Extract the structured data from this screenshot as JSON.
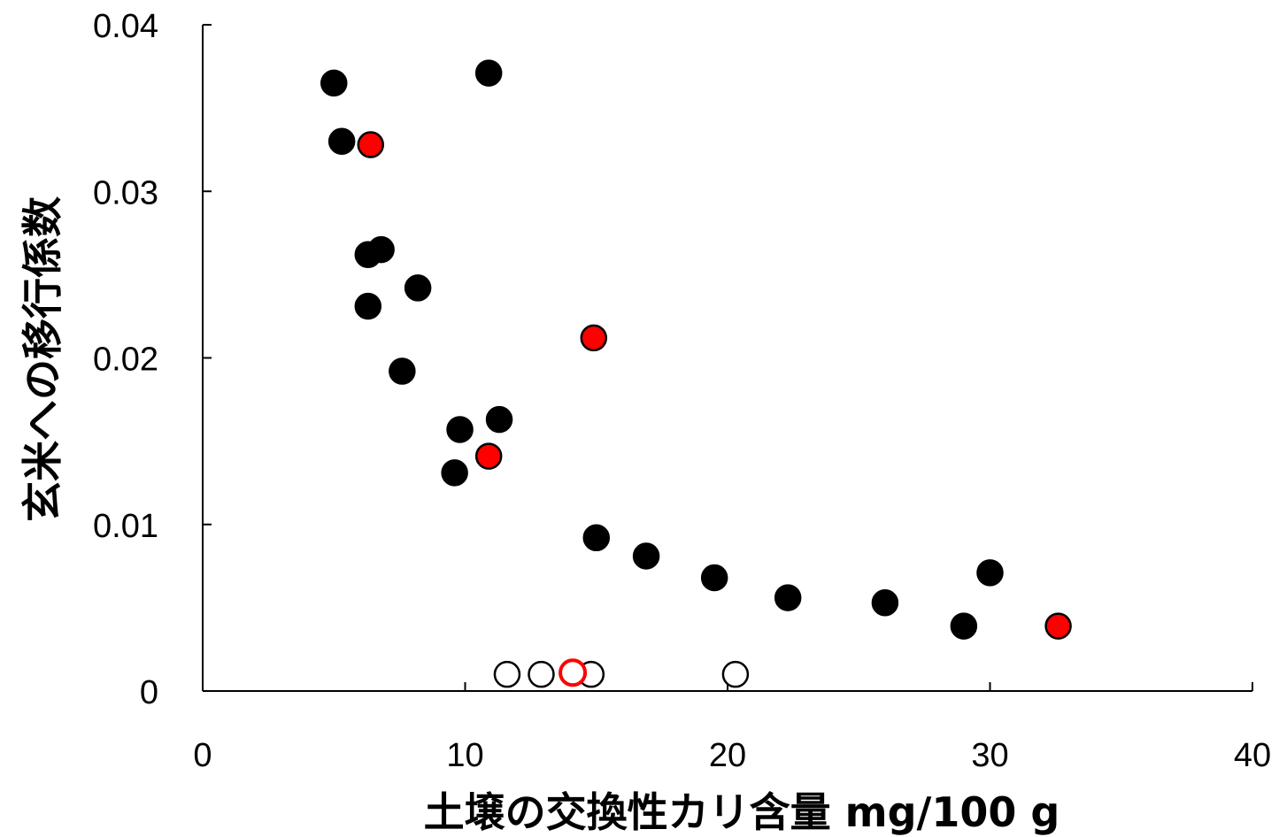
{
  "chart_data": {
    "type": "scatter",
    "title": "",
    "xlabel": "土壌の交換性カリ含量 mg/100 g",
    "ylabel": "玄米への移行係数",
    "xlim": [
      0,
      40
    ],
    "ylim": [
      0,
      0.04
    ],
    "xticks": [
      "0",
      "10",
      "20",
      "30",
      "40"
    ],
    "yticks": [
      "0",
      "0.01",
      "0.02",
      "0.03",
      "0.04"
    ],
    "grid": false,
    "legend": "none",
    "series": [
      {
        "marker": "filled-circle",
        "color": "#000000",
        "points": [
          {
            "x": 5.0,
            "y": 0.0365
          },
          {
            "x": 10.9,
            "y": 0.0371
          },
          {
            "x": 5.3,
            "y": 0.033
          },
          {
            "x": 6.3,
            "y": 0.0262
          },
          {
            "x": 6.8,
            "y": 0.0265
          },
          {
            "x": 6.3,
            "y": 0.0231
          },
          {
            "x": 8.2,
            "y": 0.0242
          },
          {
            "x": 7.6,
            "y": 0.0192
          },
          {
            "x": 9.8,
            "y": 0.0157
          },
          {
            "x": 11.3,
            "y": 0.0163
          },
          {
            "x": 9.6,
            "y": 0.0131
          },
          {
            "x": 15.0,
            "y": 0.0092
          },
          {
            "x": 16.9,
            "y": 0.0081
          },
          {
            "x": 19.5,
            "y": 0.0068
          },
          {
            "x": 22.3,
            "y": 0.0056
          },
          {
            "x": 26.0,
            "y": 0.0053
          },
          {
            "x": 29.0,
            "y": 0.0039
          },
          {
            "x": 30.0,
            "y": 0.0071
          }
        ]
      },
      {
        "marker": "filled-circle",
        "color": "#ff0000",
        "edge": "#000000",
        "points": [
          {
            "x": 6.4,
            "y": 0.0328
          },
          {
            "x": 14.9,
            "y": 0.0212
          },
          {
            "x": 10.9,
            "y": 0.0141
          },
          {
            "x": 32.6,
            "y": 0.0039
          }
        ]
      },
      {
        "marker": "open-circle",
        "color": "#000000",
        "points": [
          {
            "x": 11.6,
            "y": 0.001
          },
          {
            "x": 12.9,
            "y": 0.001
          },
          {
            "x": 14.8,
            "y": 0.001
          },
          {
            "x": 20.3,
            "y": 0.001
          }
        ]
      },
      {
        "marker": "open-circle",
        "color": "#ff0000",
        "points": [
          {
            "x": 14.1,
            "y": 0.0011
          }
        ]
      }
    ]
  }
}
